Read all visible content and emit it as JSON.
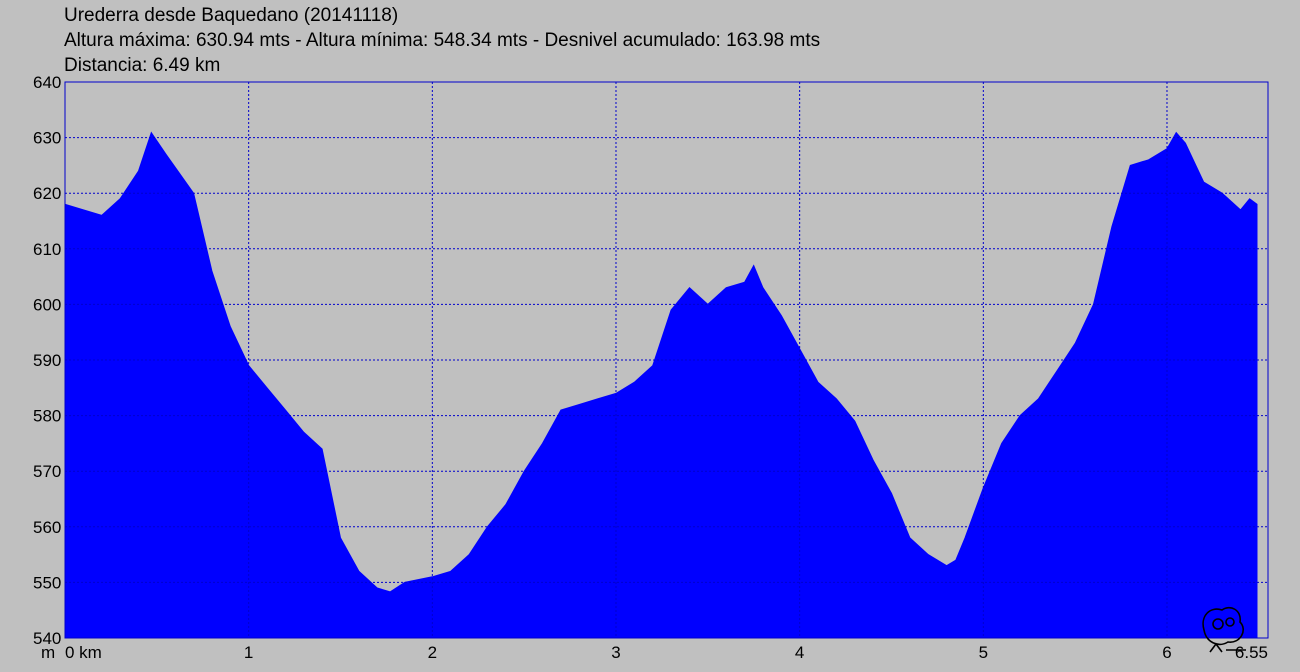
{
  "header": {
    "title": "Urederra desde Baquedano (20141118)",
    "stats": "Altura máxima: 630.94 mts - Altura mínima: 548.34 mts - Desnivel acumulado: 163.98 mts",
    "distance": "Distancia: 6.49 km"
  },
  "colors": {
    "background": "#c0c0c0",
    "fill": "#0000ff",
    "grid": "#0000cc",
    "text": "#000000"
  },
  "chart_data": {
    "type": "area",
    "title": "Urederra desde Baquedano (20141118)",
    "xlabel": "km",
    "ylabel": "m",
    "xlim": [
      0,
      6.55
    ],
    "ylim": [
      540,
      640
    ],
    "grid": true,
    "x_tick_labels": [
      "0 km",
      "1",
      "2",
      "3",
      "4",
      "5",
      "6",
      "6.55"
    ],
    "x_ticks": [
      0,
      1,
      2,
      3,
      4,
      5,
      6,
      6.55
    ],
    "y_ticks": [
      540,
      550,
      560,
      570,
      580,
      590,
      600,
      610,
      620,
      630,
      640
    ],
    "y_unit_label": "m",
    "series": [
      {
        "name": "Altura",
        "x": [
          0,
          0.1,
          0.2,
          0.3,
          0.4,
          0.47,
          0.55,
          0.7,
          0.8,
          0.9,
          1.0,
          1.1,
          1.2,
          1.3,
          1.4,
          1.5,
          1.6,
          1.7,
          1.77,
          1.85,
          2.0,
          2.1,
          2.2,
          2.3,
          2.4,
          2.5,
          2.6,
          2.7,
          2.8,
          2.9,
          3.0,
          3.1,
          3.2,
          3.3,
          3.4,
          3.5,
          3.6,
          3.7,
          3.75,
          3.8,
          3.9,
          4.0,
          4.1,
          4.2,
          4.3,
          4.4,
          4.5,
          4.6,
          4.7,
          4.8,
          4.85,
          4.9,
          5.0,
          5.1,
          5.2,
          5.3,
          5.4,
          5.5,
          5.6,
          5.7,
          5.8,
          5.9,
          6.0,
          6.05,
          6.1,
          6.2,
          6.3,
          6.4,
          6.45,
          6.49
        ],
        "values": [
          618,
          617,
          616,
          619,
          624,
          630.9,
          627,
          620,
          606,
          596,
          589,
          585,
          581,
          577,
          574,
          558,
          552,
          549,
          548.3,
          550,
          551,
          552,
          555,
          560,
          564,
          570,
          575,
          581,
          582,
          583,
          584,
          586,
          589,
          599,
          603,
          600,
          603,
          604,
          607,
          603,
          598,
          592,
          586,
          583,
          579,
          572,
          566,
          558,
          555,
          553,
          554,
          558,
          567,
          575,
          580,
          583,
          588,
          593,
          600,
          614,
          625,
          626,
          628,
          630.9,
          629,
          622,
          620,
          617,
          619,
          618
        ]
      }
    ]
  }
}
